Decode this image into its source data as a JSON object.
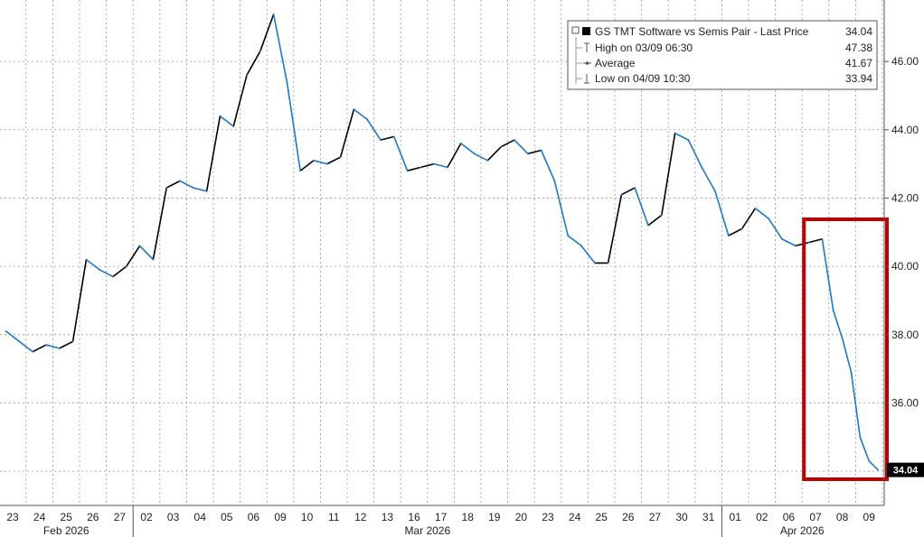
{
  "chart_data": {
    "type": "line",
    "title": "GS TMT Software vs Semis Pair - Last Price",
    "series": [
      {
        "name": "GS TMT Software vs Semis Pair - Last Price",
        "points": [
          [
            "02-23",
            38.1
          ],
          [
            "02-23",
            37.8
          ],
          [
            "02-24",
            37.5
          ],
          [
            "02-24",
            37.7
          ],
          [
            "02-25",
            37.6
          ],
          [
            "02-25",
            37.8
          ],
          [
            "02-26",
            40.2
          ],
          [
            "02-26",
            39.9
          ],
          [
            "02-27",
            39.7
          ],
          [
            "02-27",
            40.0
          ],
          [
            "03-02",
            40.6
          ],
          [
            "03-02",
            40.2
          ],
          [
            "03-03",
            42.3
          ],
          [
            "03-03",
            42.5
          ],
          [
            "03-04",
            42.3
          ],
          [
            "03-04",
            42.2
          ],
          [
            "03-05",
            44.4
          ],
          [
            "03-05",
            44.1
          ],
          [
            "03-06",
            45.6
          ],
          [
            "03-06",
            46.3
          ],
          [
            "03-09",
            47.38
          ],
          [
            "03-09",
            45.4
          ],
          [
            "03-10",
            42.8
          ],
          [
            "03-10",
            43.1
          ],
          [
            "03-11",
            43.0
          ],
          [
            "03-11",
            43.2
          ],
          [
            "03-12",
            44.6
          ],
          [
            "03-12",
            44.3
          ],
          [
            "03-13",
            43.7
          ],
          [
            "03-13",
            43.8
          ],
          [
            "03-16",
            42.8
          ],
          [
            "03-16",
            42.9
          ],
          [
            "03-17",
            43.0
          ],
          [
            "03-17",
            42.9
          ],
          [
            "03-18",
            43.6
          ],
          [
            "03-18",
            43.3
          ],
          [
            "03-19",
            43.1
          ],
          [
            "03-19",
            43.5
          ],
          [
            "03-20",
            43.7
          ],
          [
            "03-20",
            43.3
          ],
          [
            "03-23",
            43.4
          ],
          [
            "03-23",
            42.5
          ],
          [
            "03-24",
            40.9
          ],
          [
            "03-24",
            40.6
          ],
          [
            "03-25",
            40.1
          ],
          [
            "03-25",
            40.1
          ],
          [
            "03-26",
            42.1
          ],
          [
            "03-26",
            42.3
          ],
          [
            "03-27",
            41.2
          ],
          [
            "03-27",
            41.5
          ],
          [
            "03-30",
            43.9
          ],
          [
            "03-30",
            43.7
          ],
          [
            "03-31",
            42.9
          ],
          [
            "03-31",
            42.2
          ],
          [
            "04-01",
            40.9
          ],
          [
            "04-01",
            41.1
          ],
          [
            "04-02",
            41.7
          ],
          [
            "04-02",
            41.4
          ],
          [
            "04-06",
            40.8
          ],
          [
            "04-06",
            40.6
          ],
          [
            "04-07",
            40.7
          ],
          [
            "04-07",
            40.8
          ],
          [
            "04-08",
            38.7
          ],
          [
            "04-08",
            37.9
          ],
          [
            "04-08",
            36.9
          ],
          [
            "04-09",
            35.0
          ],
          [
            "04-09",
            34.3
          ],
          [
            "04-09",
            34.04
          ]
        ]
      }
    ],
    "y_axis": {
      "side": "right",
      "ticks": [
        "34.00",
        "36.00",
        "38.00",
        "40.00",
        "42.00",
        "44.00",
        "46.00"
      ],
      "ylim": [
        33.0,
        47.8
      ]
    },
    "x_axis": {
      "days": [
        "23",
        "24",
        "25",
        "26",
        "27",
        "02",
        "03",
        "04",
        "05",
        "06",
        "09",
        "10",
        "11",
        "12",
        "13",
        "16",
        "17",
        "18",
        "19",
        "20",
        "23",
        "24",
        "25",
        "26",
        "27",
        "30",
        "31",
        "01",
        "02",
        "06",
        "07",
        "08",
        "09"
      ],
      "months": [
        "Feb 2026",
        "Mar 2026",
        "Apr 2026"
      ]
    },
    "grid": true,
    "legend": {
      "placement": "top-right",
      "title": "GS TMT Software vs Semis Pair - Last Price",
      "title_value": "34.04",
      "rows": [
        {
          "label": "High on 03/09 06:30",
          "value": "47.38"
        },
        {
          "label": "Average",
          "value": "41.67"
        },
        {
          "label": "Low on 04/09 10:30",
          "value": "33.94"
        }
      ]
    },
    "last_price_label": "34.04",
    "highlight_box": {
      "from_day": "07",
      "to_day": "09",
      "month": "Apr 2026",
      "color": "#c00000"
    },
    "colors": {
      "up": "#000000",
      "down": "#1f77c8",
      "grid": "#999999",
      "axis": "#555555",
      "highlight": "#c00000"
    }
  }
}
